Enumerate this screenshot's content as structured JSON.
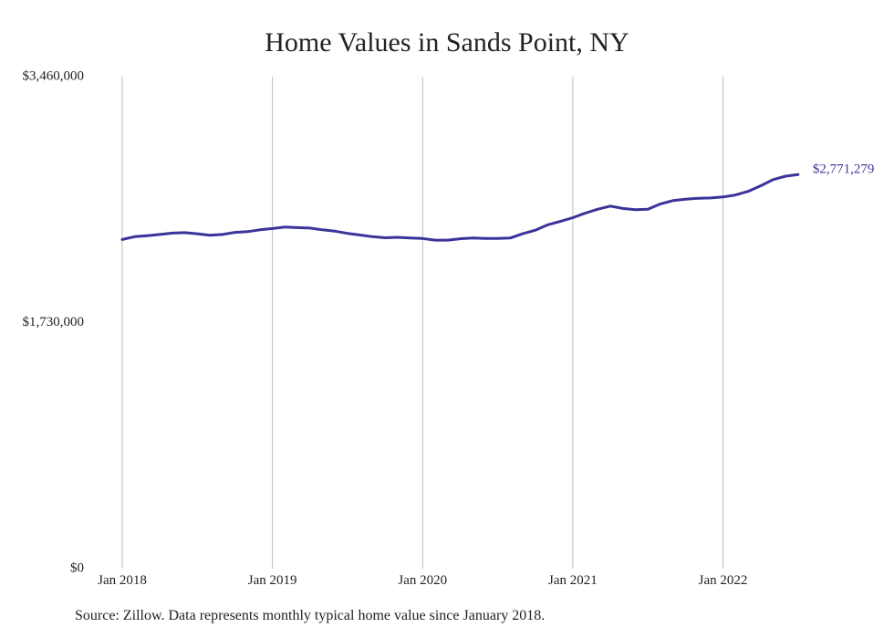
{
  "chart_data": {
    "type": "line",
    "title": "Home Values in Sands Point, NY",
    "xlabel": "",
    "ylabel": "",
    "source": "Source: Zillow. Data represents monthly typical home value since January 2018.",
    "y_ticks": [
      "$3,460,000",
      "$1,730,000",
      "$0"
    ],
    "y_tick_values": [
      3460000,
      1730000,
      0
    ],
    "ylim": [
      0,
      3460000
    ],
    "x_ticks": [
      "Jan 2018",
      "Jan 2019",
      "Jan 2020",
      "Jan 2021",
      "Jan 2022"
    ],
    "x_tick_index": [
      0,
      12,
      24,
      36,
      48
    ],
    "grid": "vertical",
    "end_label": "$2,771,279",
    "series": [
      {
        "color": "#3b3399",
        "values": [
          2315000,
          2335000,
          2342000,
          2350000,
          2360000,
          2363000,
          2355000,
          2345000,
          2350000,
          2365000,
          2370000,
          2383000,
          2392000,
          2402000,
          2398000,
          2395000,
          2383000,
          2373000,
          2358000,
          2346000,
          2335000,
          2327000,
          2330000,
          2325000,
          2322000,
          2310000,
          2310000,
          2320000,
          2326000,
          2322000,
          2322000,
          2325000,
          2355000,
          2380000,
          2418000,
          2442000,
          2468000,
          2500000,
          2528000,
          2550000,
          2533000,
          2525000,
          2528000,
          2565000,
          2588000,
          2598000,
          2605000,
          2607000,
          2614000,
          2628000,
          2653000,
          2692000,
          2736000,
          2760000,
          2771279
        ]
      }
    ]
  }
}
